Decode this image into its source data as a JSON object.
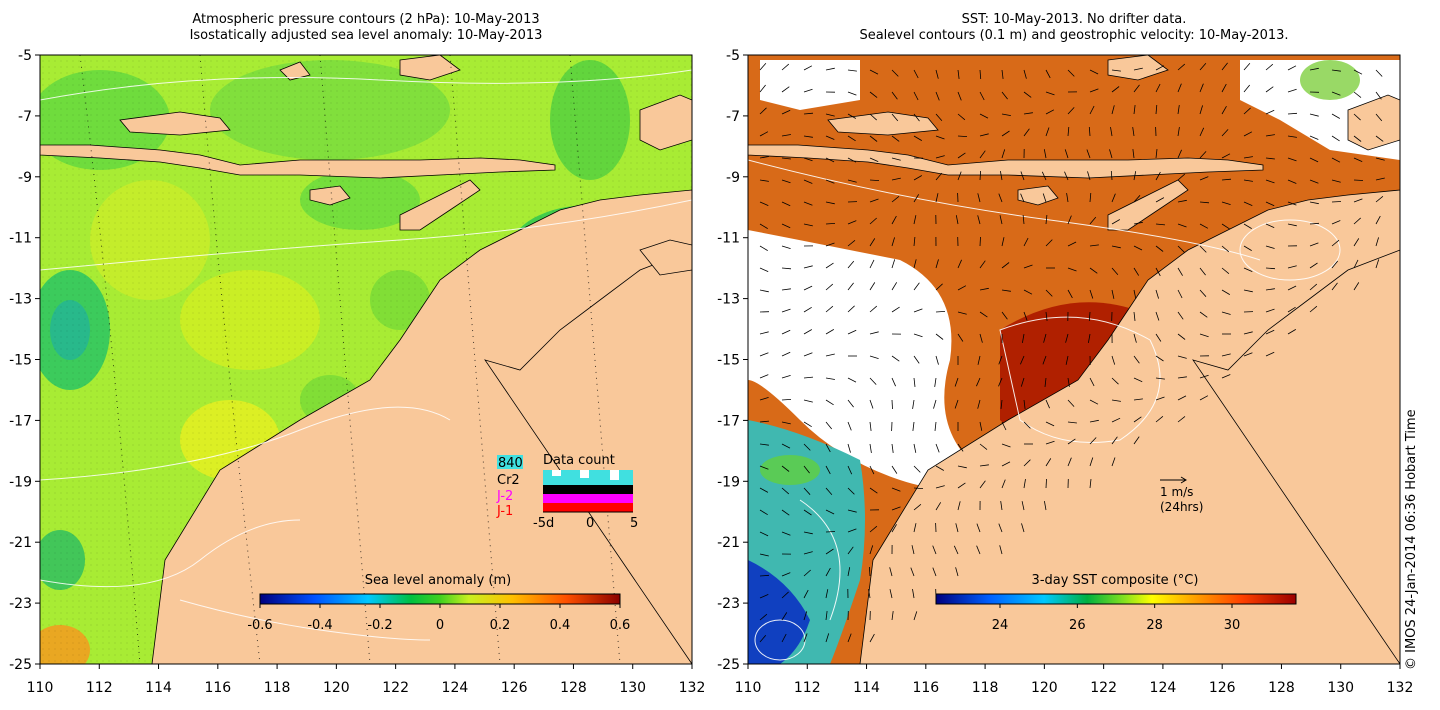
{
  "left_panel": {
    "title_line1": "Atmospheric pressure contours (2 hPa): 10-May-2013",
    "title_line2": "Isostatically adjusted sea level anomaly: 10-May-2013",
    "colorbar_label": "Sea level anomaly (m)",
    "colorbar_ticks": [
      "-0.6",
      "-0.4",
      "-0.2",
      "0",
      "0.2",
      "0.4",
      "0.6"
    ],
    "data_count": {
      "title": "Data count",
      "total": "840",
      "satellites": [
        "Cr2",
        "J-2",
        "J-1"
      ],
      "satellite_colors": [
        "#000000",
        "#ff00ff",
        "#ff0000"
      ],
      "x_ticks": [
        "-5d",
        "0",
        "5"
      ]
    }
  },
  "right_panel": {
    "title_line1": "SST: 10-May-2013. No drifter data.",
    "title_line2": "Sealevel contours (0.1 m) and geostrophic velocity: 10-May-2013.",
    "colorbar_label": "3-day SST composite (°C)",
    "colorbar_ticks": [
      "24",
      "26",
      "28",
      "30"
    ],
    "velocity_scale": "1 m/s",
    "velocity_scale_note": "(24hrs)"
  },
  "axes": {
    "lat_ticks": [
      "-5",
      "-7",
      "-9",
      "-11",
      "-13",
      "-15",
      "-17",
      "-19",
      "-21",
      "-23",
      "-25"
    ],
    "lon_ticks": [
      "110",
      "112",
      "114",
      "116",
      "118",
      "120",
      "122",
      "124",
      "126",
      "128",
      "130",
      "132"
    ]
  },
  "credit": "© IMOS 24-Jan-2014 06:36 Hobart Time",
  "colors": {
    "land": "#f9c89a",
    "ocean_left": "#a8ee30",
    "ocean_right": "#d2691e",
    "sst_hot": "#b22200",
    "missing": "#ffffff"
  }
}
